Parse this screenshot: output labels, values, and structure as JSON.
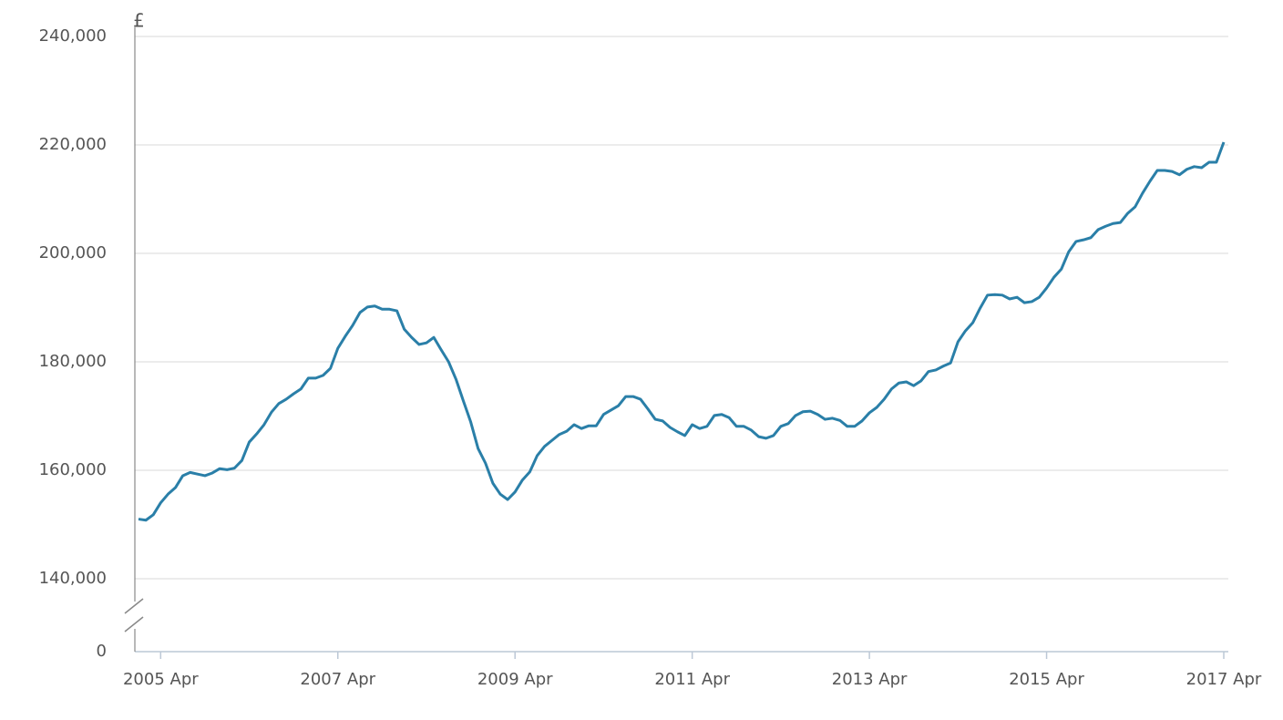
{
  "chart_data": {
    "type": "line",
    "y_label": "£",
    "axis_break": true,
    "grid": true,
    "x": [
      "2005 Jan",
      "2005 Feb",
      "2005 Mar",
      "2005 Apr",
      "2005 May",
      "2005 Jun",
      "2005 Jul",
      "2005 Aug",
      "2005 Sep",
      "2005 Oct",
      "2005 Nov",
      "2005 Dec",
      "2006 Jan",
      "2006 Feb",
      "2006 Mar",
      "2006 Apr",
      "2006 May",
      "2006 Jun",
      "2006 Jul",
      "2006 Aug",
      "2006 Sep",
      "2006 Oct",
      "2006 Nov",
      "2006 Dec",
      "2007 Jan",
      "2007 Feb",
      "2007 Mar",
      "2007 Apr",
      "2007 May",
      "2007 Jun",
      "2007 Jul",
      "2007 Aug",
      "2007 Sep",
      "2007 Oct",
      "2007 Nov",
      "2007 Dec",
      "2008 Jan",
      "2008 Feb",
      "2008 Mar",
      "2008 Apr",
      "2008 May",
      "2008 Jun",
      "2008 Jul",
      "2008 Aug",
      "2008 Sep",
      "2008 Oct",
      "2008 Nov",
      "2008 Dec",
      "2009 Jan",
      "2009 Feb",
      "2009 Mar",
      "2009 Apr",
      "2009 May",
      "2009 Jun",
      "2009 Jul",
      "2009 Aug",
      "2009 Sep",
      "2009 Oct",
      "2009 Nov",
      "2009 Dec",
      "2010 Jan",
      "2010 Feb",
      "2010 Mar",
      "2010 Apr",
      "2010 May",
      "2010 Jun",
      "2010 Jul",
      "2010 Aug",
      "2010 Sep",
      "2010 Oct",
      "2010 Nov",
      "2010 Dec",
      "2011 Jan",
      "2011 Feb",
      "2011 Mar",
      "2011 Apr",
      "2011 May",
      "2011 Jun",
      "2011 Jul",
      "2011 Aug",
      "2011 Sep",
      "2011 Oct",
      "2011 Nov",
      "2011 Dec",
      "2012 Jan",
      "2012 Feb",
      "2012 Mar",
      "2012 Apr",
      "2012 May",
      "2012 Jun",
      "2012 Jul",
      "2012 Aug",
      "2012 Sep",
      "2012 Oct",
      "2012 Nov",
      "2012 Dec",
      "2013 Jan",
      "2013 Feb",
      "2013 Mar",
      "2013 Apr",
      "2013 May",
      "2013 Jun",
      "2013 Jul",
      "2013 Aug",
      "2013 Sep",
      "2013 Oct",
      "2013 Nov",
      "2013 Dec",
      "2014 Jan",
      "2014 Feb",
      "2014 Mar",
      "2014 Apr",
      "2014 May",
      "2014 Jun",
      "2014 Jul",
      "2014 Aug",
      "2014 Sep",
      "2014 Oct",
      "2014 Nov",
      "2014 Dec",
      "2015 Jan",
      "2015 Feb",
      "2015 Mar",
      "2015 Apr",
      "2015 May",
      "2015 Jun",
      "2015 Jul",
      "2015 Aug",
      "2015 Sep",
      "2015 Oct",
      "2015 Nov",
      "2015 Dec",
      "2016 Jan",
      "2016 Feb",
      "2016 Mar",
      "2016 Apr",
      "2016 May",
      "2016 Jun",
      "2016 Jul",
      "2016 Aug",
      "2016 Sep",
      "2016 Oct",
      "2016 Nov",
      "2016 Dec",
      "2017 Jan",
      "2017 Feb",
      "2017 Mar",
      "2017 Apr"
    ],
    "series": [
      {
        "color": "#2a7fa8",
        "values": [
          151000,
          150800,
          151800,
          154000,
          155600,
          156800,
          159000,
          159600,
          159300,
          159000,
          159500,
          160300,
          160100,
          160400,
          161800,
          165200,
          166700,
          168400,
          170700,
          172300,
          173100,
          174100,
          175000,
          177000,
          177000,
          177500,
          178800,
          182500,
          184700,
          186700,
          189100,
          190100,
          190300,
          189700,
          189700,
          189400,
          186000,
          184500,
          183200,
          183500,
          184500,
          182200,
          180000,
          176800,
          172800,
          168900,
          164000,
          161300,
          157600,
          155600,
          154600,
          156000,
          158200,
          159700,
          162700,
          164400,
          165500,
          166600,
          167200,
          168400,
          167700,
          168200,
          168200,
          170300,
          171100,
          171900,
          173600,
          173600,
          173100,
          171300,
          169400,
          169100,
          167900,
          167100,
          166400,
          168400,
          167700,
          168100,
          170100,
          170300,
          169700,
          168100,
          168100,
          167400,
          166200,
          165900,
          166400,
          168100,
          168600,
          170100,
          170800,
          170900,
          170300,
          169400,
          169600,
          169200,
          168100,
          168100,
          169100,
          170600,
          171600,
          173100,
          175000,
          176100,
          176300,
          175600,
          176500,
          178200,
          178500,
          179200,
          179800,
          183700,
          185700,
          187200,
          189900,
          192300,
          192400,
          192300,
          191600,
          191900,
          190900,
          191100,
          191900,
          193600,
          195600,
          197100,
          200300,
          202200,
          202500,
          202900,
          204400,
          205000,
          205500,
          205700,
          207400,
          208600,
          211100,
          213300,
          215300,
          215300,
          215100,
          214500,
          215500,
          216000,
          215800,
          216800,
          216800,
          220500
        ]
      }
    ],
    "xticks": [
      "2005 Apr",
      "2007 Apr",
      "2009 Apr",
      "2011 Apr",
      "2013 Apr",
      "2015 Apr",
      "2017 Apr"
    ],
    "ylim": [
      0,
      240000
    ],
    "yticks": [
      {
        "value": 0,
        "label": "0"
      },
      {
        "value": 140000,
        "label": "140,000"
      },
      {
        "value": 160000,
        "label": "160,000"
      },
      {
        "value": 180000,
        "label": "180,000"
      },
      {
        "value": 200000,
        "label": "200,000"
      },
      {
        "value": 220000,
        "label": "220,000"
      },
      {
        "value": 240000,
        "label": "240,000"
      }
    ]
  }
}
